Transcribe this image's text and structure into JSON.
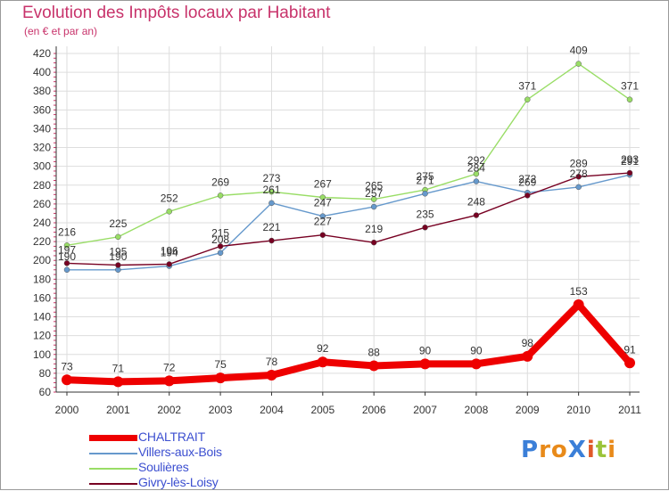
{
  "chart_data": {
    "type": "line",
    "title": "Evolution des Impôts locaux par Habitant",
    "subtitle": "(en € et par an)",
    "categories": [
      "2000",
      "2001",
      "2002",
      "2003",
      "2004",
      "2005",
      "2006",
      "2007",
      "2008",
      "2009",
      "2010",
      "2011"
    ],
    "yticks": [
      60,
      80,
      100,
      120,
      140,
      160,
      180,
      200,
      220,
      240,
      260,
      280,
      300,
      320,
      340,
      360,
      380,
      400,
      420
    ],
    "ylim": [
      60,
      420
    ],
    "grid": true,
    "legend_position": "bottom-left",
    "series": [
      {
        "name": "CHALTRAIT",
        "color": "#ee0000",
        "values": [
          73,
          71,
          72,
          75,
          78,
          92,
          88,
          90,
          90,
          98,
          153,
          91
        ]
      },
      {
        "name": "Villers-aux-Bois",
        "color": "#6699cc",
        "values": [
          190,
          190,
          194,
          208,
          261,
          247,
          257,
          271,
          284,
          272,
          278,
          291
        ]
      },
      {
        "name": "Soulières",
        "color": "#99dd66",
        "values": [
          216,
          225,
          252,
          269,
          273,
          267,
          265,
          275,
          292,
          371,
          409,
          371
        ]
      },
      {
        "name": "Givry-lès-Loisy",
        "color": "#770022",
        "values": [
          197,
          195,
          196,
          215,
          221,
          227,
          219,
          235,
          248,
          269,
          289,
          293
        ]
      }
    ],
    "data_labels": [
      [
        "73",
        "71",
        "72",
        "75",
        "78",
        "92",
        "88",
        "90",
        "90",
        "98",
        "153",
        "91"
      ],
      [
        "190",
        "190",
        "194",
        "208",
        "261",
        "247",
        "257",
        "271",
        "284",
        "272",
        "278",
        "291"
      ],
      [
        "216",
        "225",
        "252",
        "269",
        "273",
        "267",
        "265",
        "275",
        "292",
        "371",
        "409",
        "371"
      ],
      [
        "197",
        "195",
        "196",
        "215",
        "221",
        "227",
        "219",
        "235",
        "248",
        "269",
        "289",
        "293"
      ]
    ]
  },
  "brand": {
    "text": "ProXiti",
    "letters": [
      "P",
      "r",
      "o",
      "X",
      "i",
      "t",
      "i"
    ],
    "colors": [
      "#3b7fd8",
      "#e88a1a",
      "#e88a1a",
      "#3b7fd8",
      "#e05a28",
      "#9bc43a",
      "#e88a1a"
    ]
  }
}
